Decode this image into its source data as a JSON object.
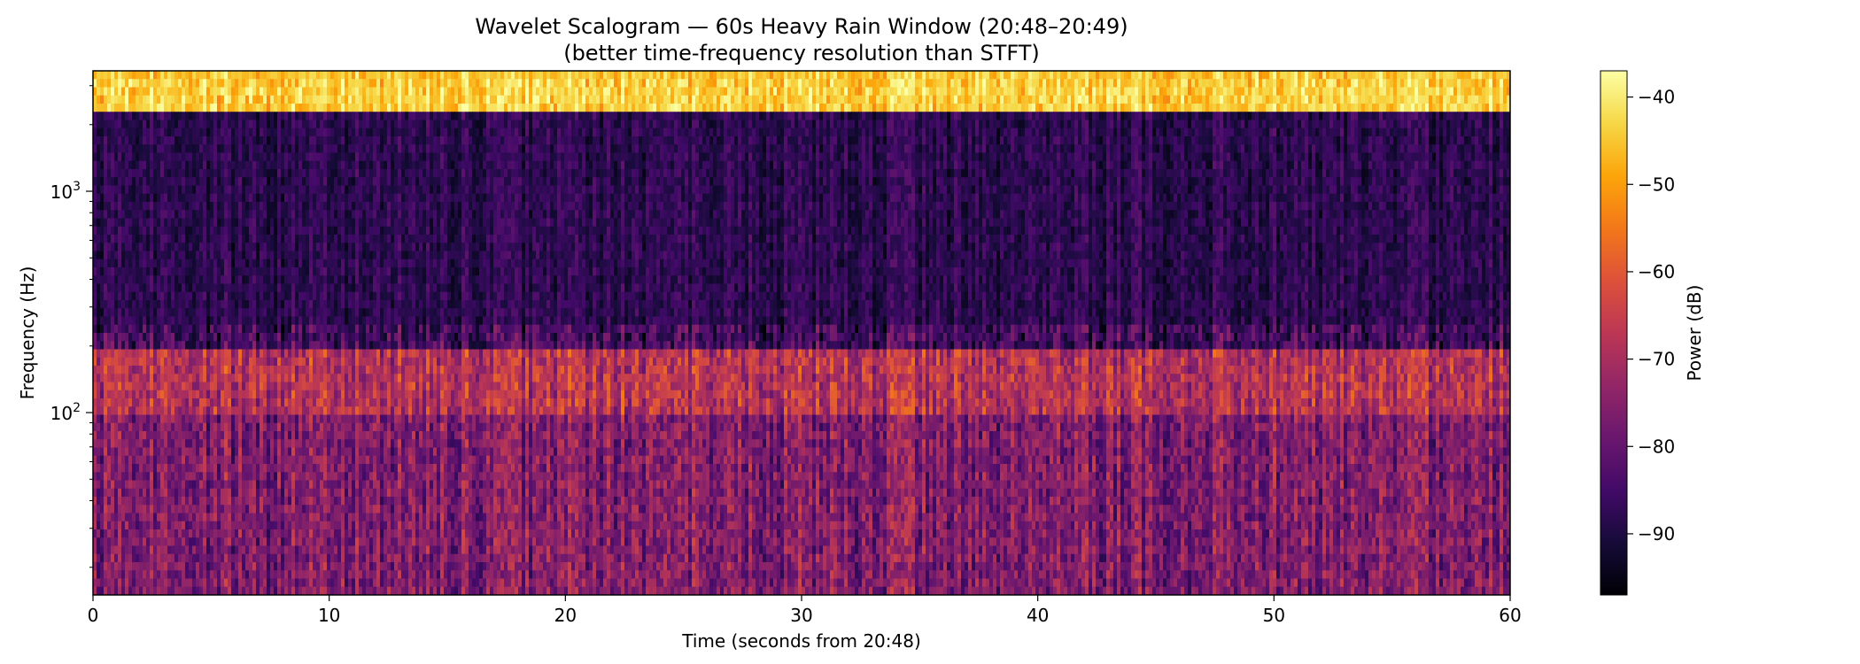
{
  "chart_data": {
    "type": "heatmap",
    "title": "Wavelet Scalogram — 60s Heavy Rain Window (20:48–20:49)",
    "subtitle": "(better time-frequency resolution than STFT)",
    "xlabel": "Time (seconds from 20:48)",
    "ylabel": "Frequency (Hz)",
    "xlim": [
      0,
      60
    ],
    "ylim": [
      15,
      3500
    ],
    "yscale": "log",
    "x_ticks": [
      0,
      10,
      20,
      30,
      40,
      50,
      60
    ],
    "x_tick_labels": [
      "0",
      "10",
      "20",
      "30",
      "40",
      "50",
      "60"
    ],
    "y_ticks": [
      100,
      1000
    ],
    "y_tick_base": "10",
    "y_tick_exponents": [
      "2",
      "3"
    ],
    "colormap": "inferno",
    "colorbar": {
      "label": "Power (dB)",
      "range": [
        -97,
        -37
      ],
      "ticks": [
        -40,
        -50,
        -60,
        -70,
        -80,
        -90
      ],
      "tick_labels": [
        "−40",
        "−50",
        "−60",
        "−70",
        "−80",
        "−90"
      ]
    },
    "bands": [
      {
        "freq_range": [
          2200,
          3500
        ],
        "power_db": -45
      },
      {
        "freq_range": [
          250,
          2200
        ],
        "power_db": -88
      },
      {
        "freq_range": [
          100,
          200
        ],
        "power_db": -68
      },
      {
        "freq_range": [
          15,
          100
        ],
        "power_db": -76
      }
    ],
    "grid": false
  }
}
